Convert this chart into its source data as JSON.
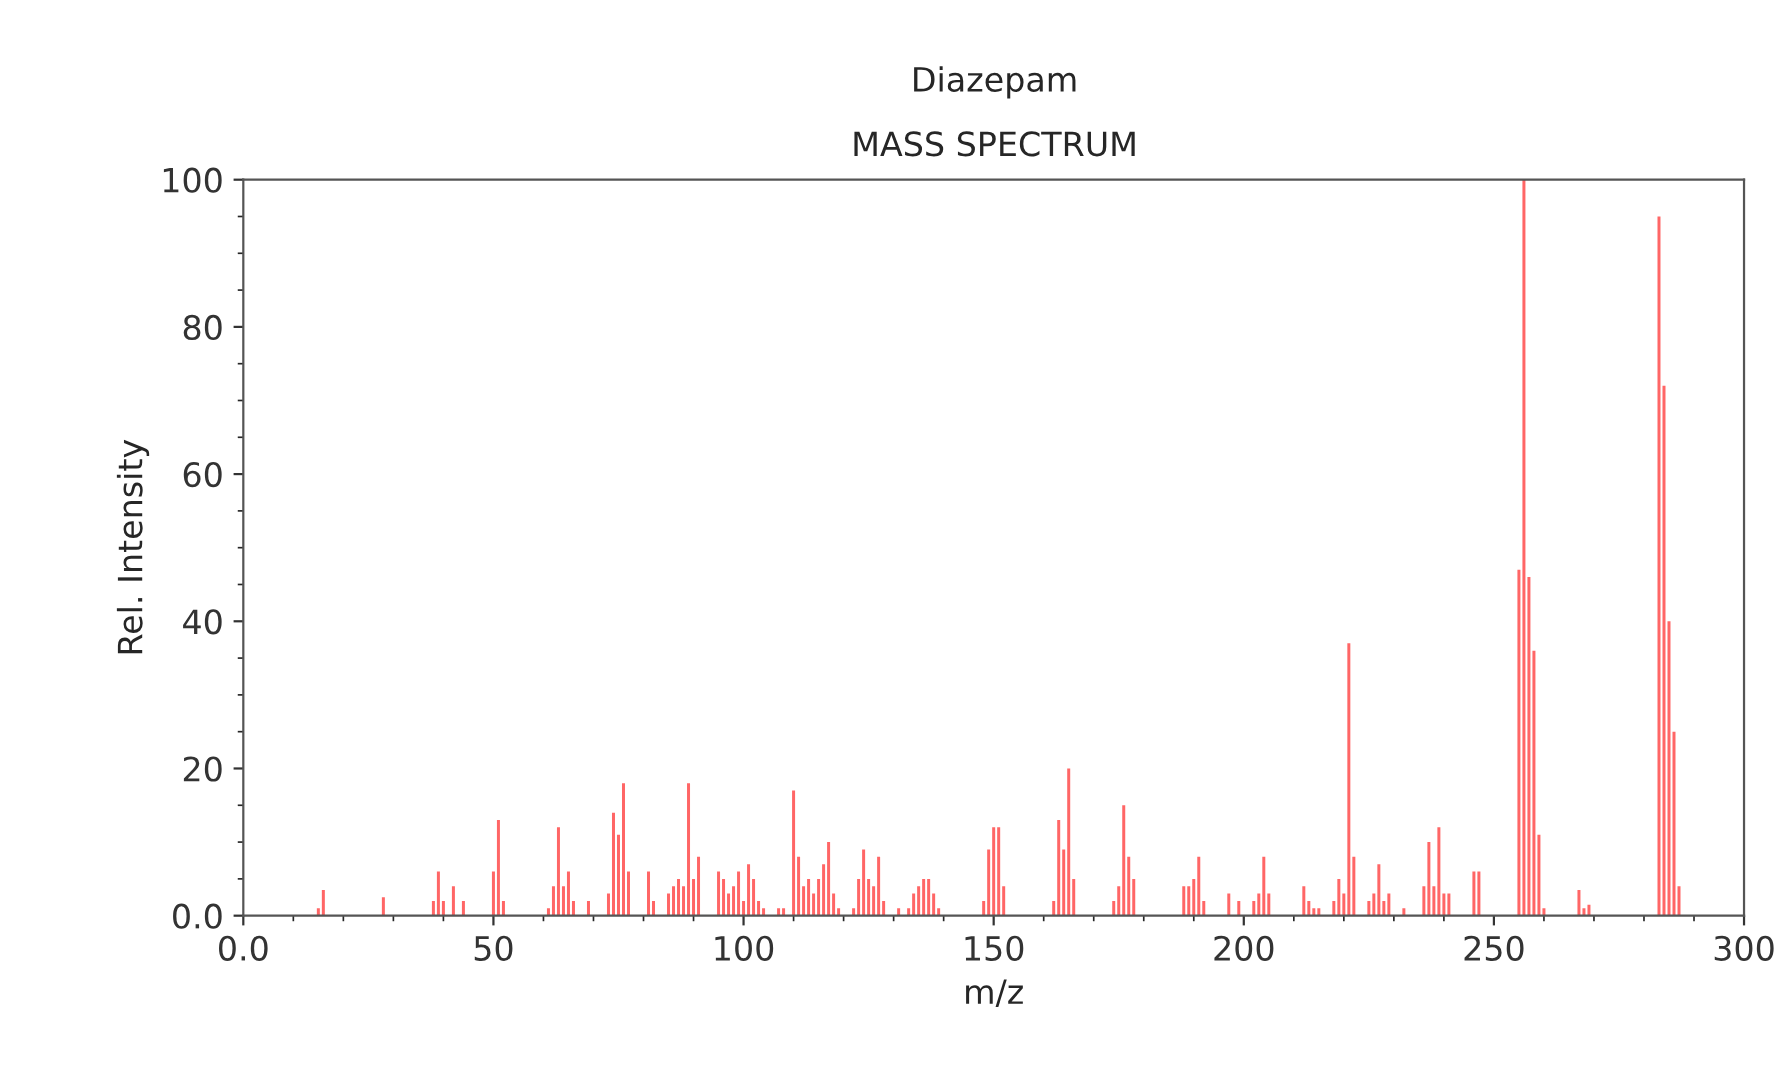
{
  "chart_data": {
    "type": "bar",
    "title": "Diazepam",
    "subtitle": "MASS SPECTRUM",
    "xlabel": "m/z",
    "ylabel": "Rel. Intensity",
    "x": [
      15,
      16,
      28,
      38,
      39,
      40,
      42,
      44,
      50,
      51,
      52,
      61,
      62,
      63,
      64,
      65,
      66,
      69,
      73,
      74,
      75,
      76,
      77,
      81,
      82,
      85,
      86,
      87,
      88,
      89,
      90,
      91,
      95,
      96,
      97,
      98,
      99,
      100,
      101,
      102,
      103,
      104,
      107,
      108,
      110,
      111,
      112,
      113,
      114,
      115,
      116,
      117,
      118,
      119,
      122,
      123,
      124,
      125,
      126,
      127,
      128,
      131,
      133,
      134,
      135,
      136,
      137,
      138,
      139,
      148,
      149,
      150,
      151,
      152,
      162,
      163,
      164,
      165,
      166,
      174,
      175,
      176,
      177,
      178,
      188,
      189,
      190,
      191,
      192,
      197,
      199,
      202,
      203,
      204,
      205,
      212,
      213,
      214,
      215,
      218,
      219,
      220,
      221,
      222,
      225,
      226,
      227,
      228,
      229,
      232,
      236,
      237,
      238,
      239,
      240,
      241,
      246,
      247,
      255,
      256,
      257,
      258,
      259,
      260,
      267,
      268,
      269,
      283,
      284,
      285,
      286,
      287
    ],
    "values": [
      1,
      3.5,
      2.5,
      2,
      6,
      2,
      4,
      2,
      6,
      13,
      2,
      1,
      4,
      12,
      4,
      6,
      2,
      2,
      3,
      14,
      11,
      18,
      6,
      6,
      2,
      3,
      4,
      5,
      4,
      18,
      5,
      8,
      6,
      5,
      3,
      4,
      6,
      2,
      7,
      5,
      2,
      1,
      1,
      1,
      17,
      8,
      4,
      5,
      3,
      5,
      7,
      10,
      3,
      1,
      1,
      5,
      9,
      5,
      4,
      8,
      2,
      1,
      1,
      3,
      4,
      5,
      5,
      3,
      1,
      2,
      9,
      12,
      12,
      4,
      2,
      13,
      9,
      20,
      5,
      2,
      4,
      15,
      8,
      5,
      4,
      4,
      5,
      8,
      2,
      3,
      2,
      2,
      3,
      8,
      3,
      4,
      2,
      1,
      1,
      2,
      5,
      3,
      37,
      8,
      2,
      3,
      7,
      2,
      3,
      1,
      4,
      10,
      4,
      12,
      3,
      3,
      6,
      6,
      47,
      100,
      46,
      36,
      11,
      1,
      3.5,
      1,
      1.5,
      95,
      72,
      40,
      25,
      4
    ],
    "color": "#ff6666",
    "xlim": [
      0,
      300
    ],
    "xticks": [
      {
        "value": 0,
        "label": "0.0"
      },
      50,
      100,
      150,
      200,
      250,
      300
    ],
    "ylim": [
      0,
      100
    ],
    "yticks": [
      {
        "value": 0,
        "label": "0.0"
      },
      20,
      40,
      60,
      80,
      100
    ],
    "grid": false
  }
}
